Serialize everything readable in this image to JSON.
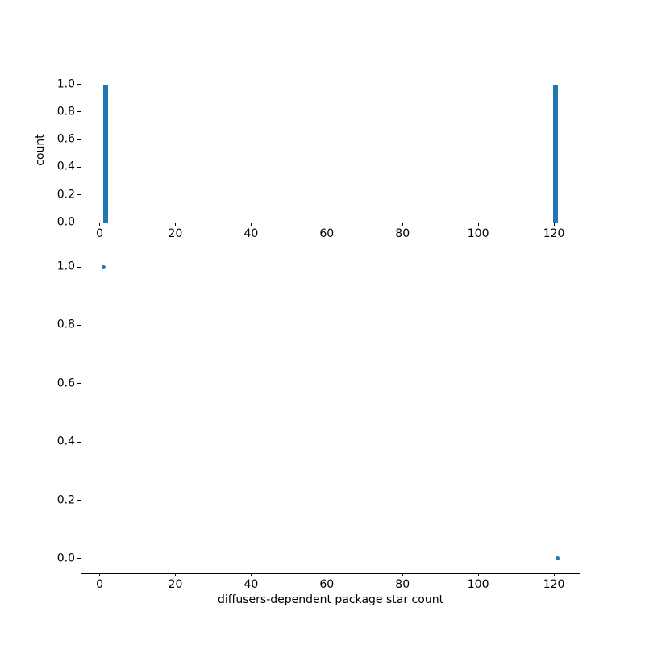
{
  "colors": {
    "series": "#1f77b4",
    "axis": "#000000",
    "background": "#ffffff"
  },
  "chart_data": [
    {
      "type": "bar",
      "title": "",
      "xlabel": "",
      "ylabel": "count",
      "legend": null,
      "grid": false,
      "xlim": [
        -4.8,
        126.8
      ],
      "ylim": [
        0,
        1.05
      ],
      "x_ticks": [
        0,
        20,
        40,
        60,
        80,
        100,
        120
      ],
      "y_ticks": [
        0.0,
        0.2,
        0.4,
        0.6,
        0.8,
        1.0
      ],
      "y_tick_labels": [
        "0.0",
        "0.2",
        "0.4",
        "0.6",
        "0.8",
        "1.0"
      ],
      "bars": [
        {
          "from": 1.0,
          "to": 2.2,
          "count": 1.0
        },
        {
          "from": 119.8,
          "to": 121.0,
          "count": 1.0
        }
      ]
    },
    {
      "type": "scatter",
      "title": "",
      "xlabel": "diffusers-dependent package star count",
      "ylabel": "",
      "legend": null,
      "grid": false,
      "xlim": [
        -4.8,
        126.8
      ],
      "ylim": [
        -0.05,
        1.05
      ],
      "x_ticks": [
        0,
        20,
        40,
        60,
        80,
        100,
        120
      ],
      "y_ticks": [
        0.0,
        0.2,
        0.4,
        0.6,
        0.8,
        1.0
      ],
      "y_tick_labels": [
        "0.0",
        "0.2",
        "0.4",
        "0.6",
        "0.8",
        "1.0"
      ],
      "points": [
        {
          "x": 1,
          "y": 1.0
        },
        {
          "x": 121,
          "y": 0.0
        }
      ]
    }
  ]
}
